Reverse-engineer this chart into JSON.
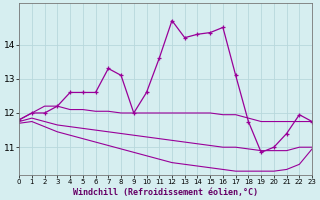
{
  "xlabel": "Windchill (Refroidissement éolien,°C)",
  "background_color": "#d6eef0",
  "line_color": "#990099",
  "grid_color": "#b8d8dc",
  "x": [
    0,
    1,
    2,
    3,
    4,
    5,
    6,
    7,
    8,
    9,
    10,
    11,
    12,
    13,
    14,
    15,
    16,
    17,
    18,
    19,
    20,
    21,
    22,
    23
  ],
  "line1": [
    11.8,
    12.0,
    12.0,
    12.2,
    12.6,
    12.6,
    12.6,
    13.3,
    13.1,
    12.0,
    12.6,
    13.6,
    14.7,
    14.2,
    14.3,
    14.35,
    14.5,
    13.1,
    11.75,
    10.85,
    11.0,
    11.4,
    11.95,
    11.75
  ],
  "line2": [
    11.8,
    12.0,
    12.2,
    12.2,
    12.1,
    12.1,
    12.05,
    12.05,
    12.0,
    12.0,
    12.0,
    12.0,
    12.0,
    12.0,
    12.0,
    12.0,
    11.95,
    11.95,
    11.85,
    11.75,
    11.75,
    11.75,
    11.75,
    11.75
  ],
  "line3": [
    11.75,
    11.85,
    11.75,
    11.65,
    11.6,
    11.55,
    11.5,
    11.45,
    11.4,
    11.35,
    11.3,
    11.25,
    11.2,
    11.15,
    11.1,
    11.05,
    11.0,
    11.0,
    10.95,
    10.9,
    10.9,
    10.9,
    11.0,
    11.0
  ],
  "line4": [
    11.7,
    11.75,
    11.6,
    11.45,
    11.35,
    11.25,
    11.15,
    11.05,
    10.95,
    10.85,
    10.75,
    10.65,
    10.55,
    10.5,
    10.45,
    10.4,
    10.35,
    10.3,
    10.3,
    10.3,
    10.3,
    10.35,
    10.5,
    10.95
  ],
  "ylim": [
    10.2,
    15.2
  ],
  "yticks": [
    11,
    12,
    13,
    14
  ],
  "xlim": [
    0,
    23
  ],
  "xticks": [
    0,
    1,
    2,
    3,
    4,
    5,
    6,
    7,
    8,
    9,
    10,
    11,
    12,
    13,
    14,
    15,
    16,
    17,
    18,
    19,
    20,
    21,
    22,
    23
  ]
}
